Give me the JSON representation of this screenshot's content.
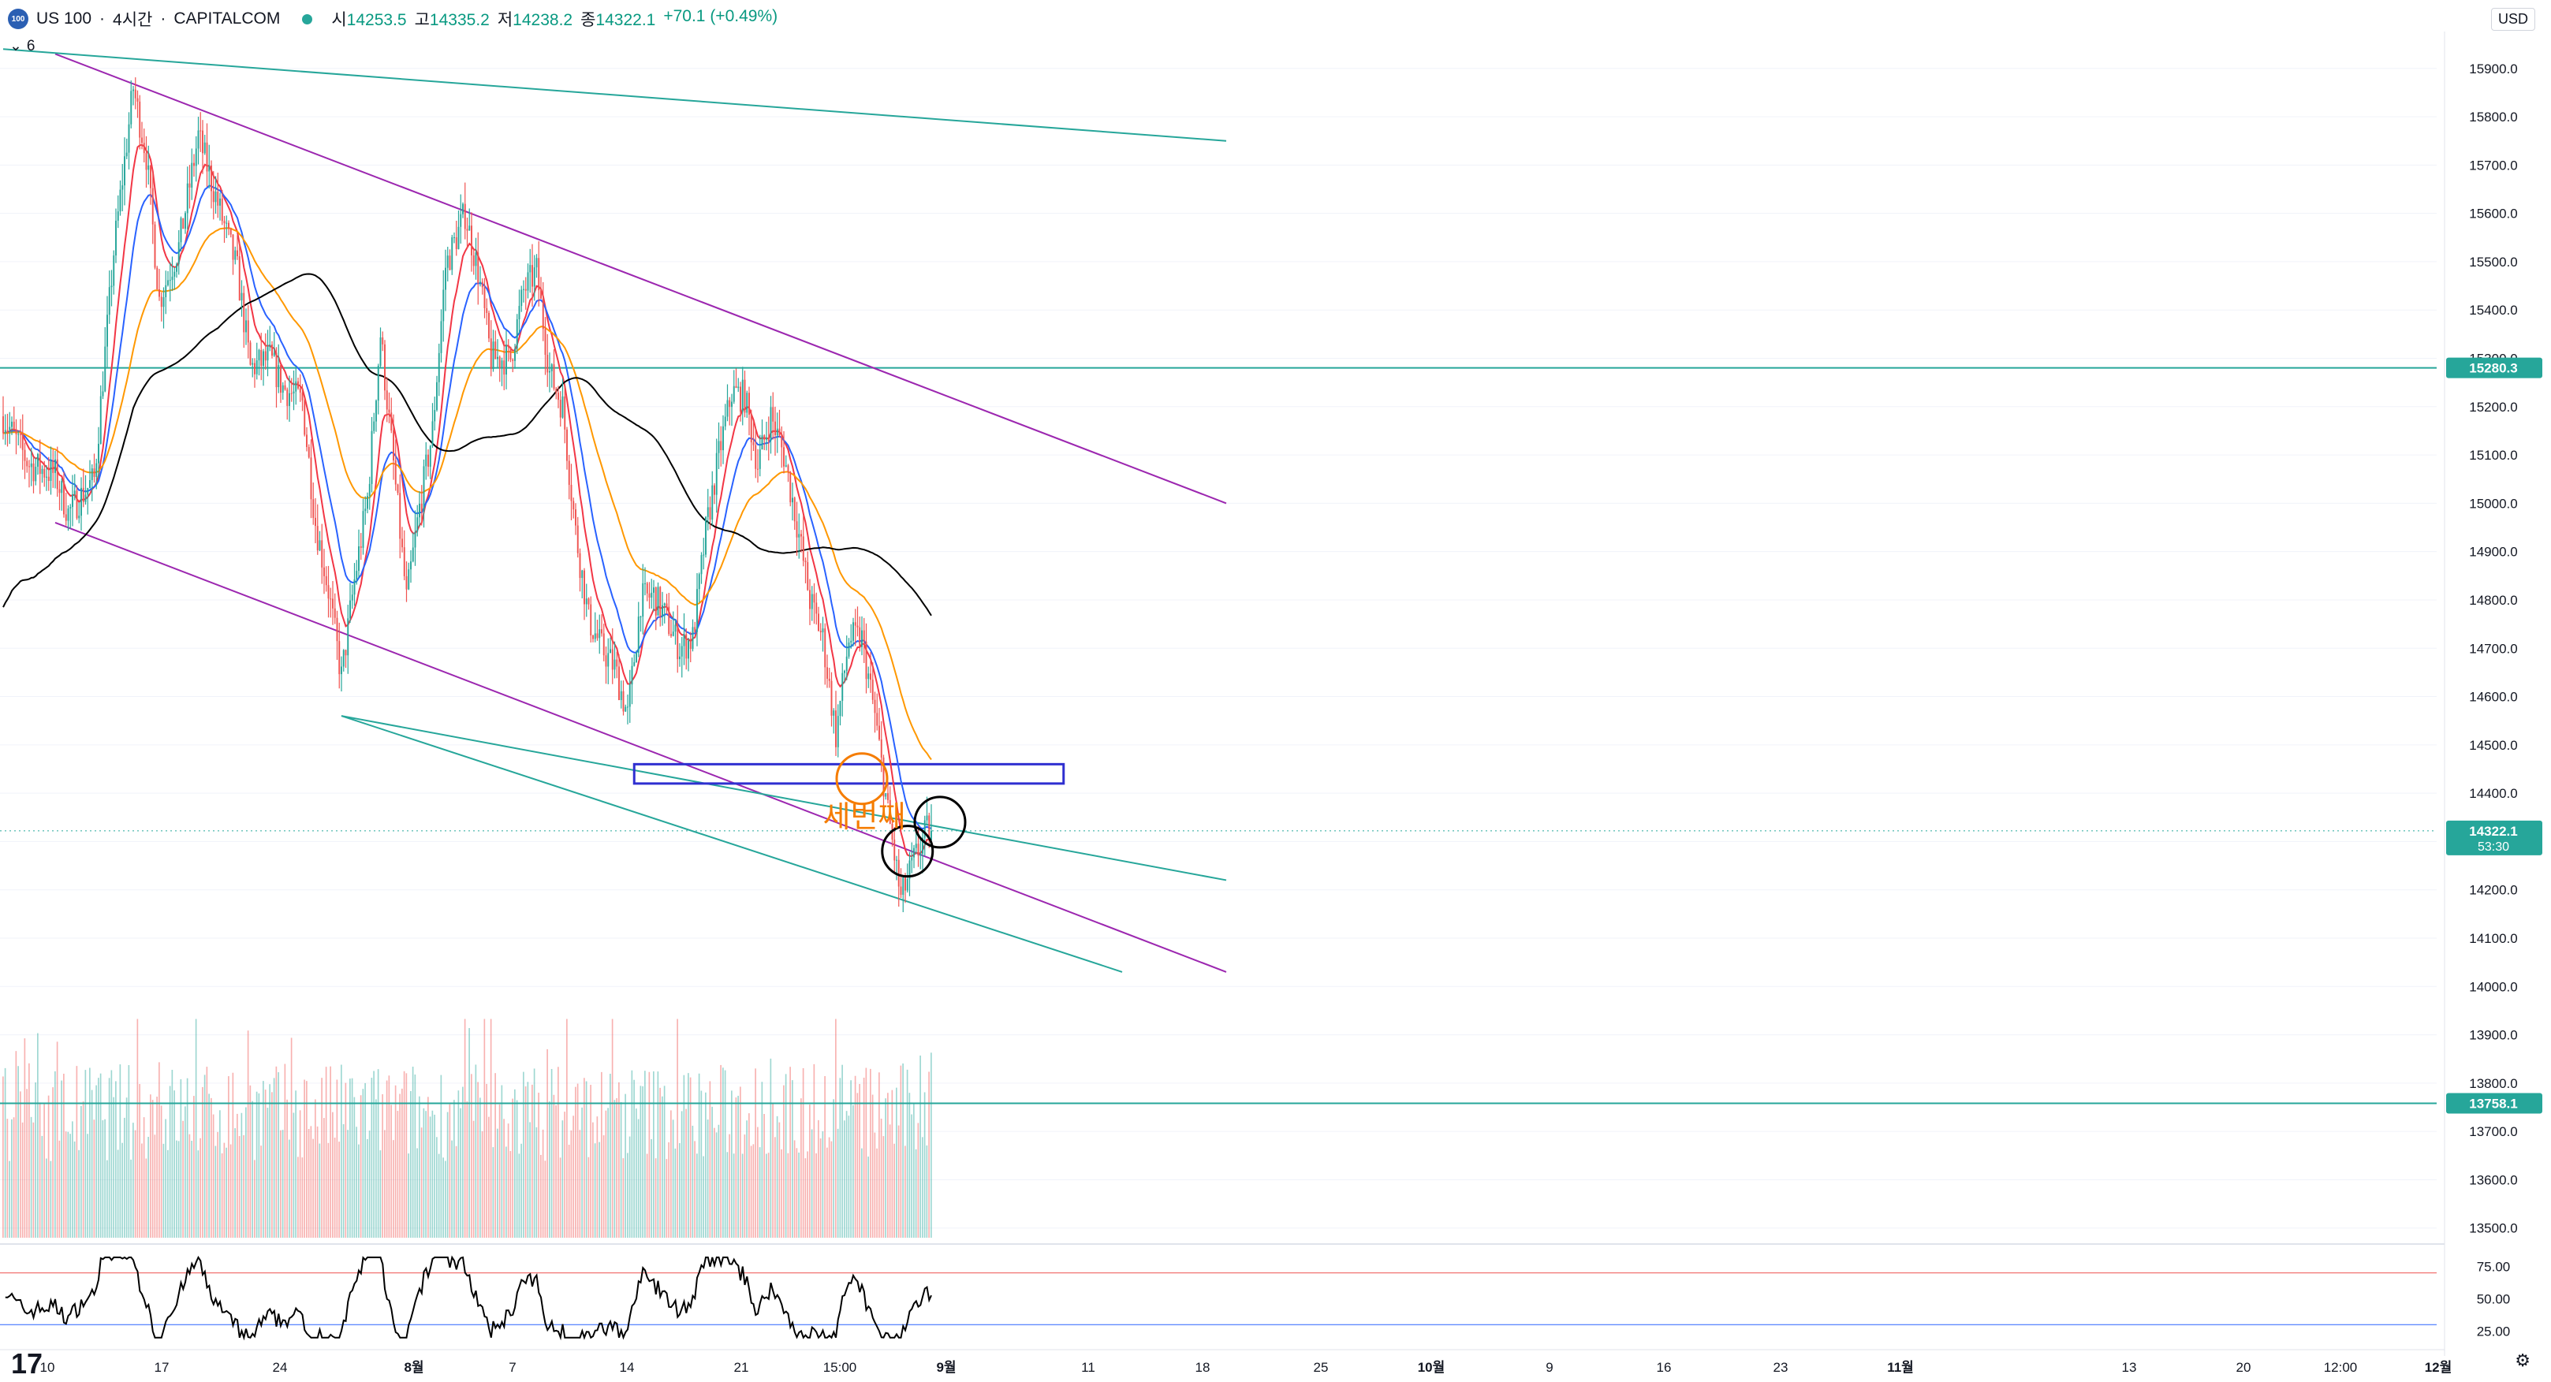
{
  "header": {
    "logo_text": "100",
    "symbol": "US 100",
    "separator1": "·",
    "interval": "4시간",
    "separator2": "·",
    "exchange": "CAPITALCOM",
    "open_label": "시",
    "open_value": "14253.5",
    "high_label": "고",
    "high_value": "14335.2",
    "low_label": "저",
    "low_value": "14238.2",
    "close_label": "종",
    "close_value": "14322.1",
    "change": "+70.1 (+0.49%)"
  },
  "indicator_tag": {
    "count": "6"
  },
  "currency_button": "USD",
  "colors": {
    "up": "#26a69a",
    "down": "#ef5350",
    "ema_fast": "#f23645",
    "ema_mid": "#2962ff",
    "ema_slow": "#ff9800",
    "ma_long": "#000000",
    "channel": "#9c27b0",
    "trendline": "#26a69a",
    "box": "#2f2fd0",
    "annotation": "#f57c00",
    "rsi": "#000000"
  },
  "annotation_text": "세번째",
  "chart_data": {
    "type": "candlestick",
    "instrument": "US 100",
    "timeframe": "4시간",
    "x_labels": [
      "10",
      "17",
      "24",
      "8월",
      "7",
      "14",
      "21",
      "15:00",
      "9월",
      "11",
      "18",
      "25",
      "10월",
      "9",
      "16",
      "23",
      "11월",
      "13",
      "20",
      "12:00",
      "12월"
    ],
    "y_ticks": [
      "15900.0",
      "15800.0",
      "15700.0",
      "15600.0",
      "15500.0",
      "15400.0",
      "15300.0",
      "15200.0",
      "15100.0",
      "15000.0",
      "14900.0",
      "14800.0",
      "14700.0",
      "14600.0",
      "14500.0",
      "14400.0",
      "14300.0",
      "14200.0",
      "14100.0",
      "14000.0",
      "13900.0",
      "13800.0",
      "13700.0",
      "13600.0",
      "13500.0"
    ],
    "ylim": [
      13480,
      15960
    ],
    "price_badges": [
      {
        "value": "15280.3",
        "kind": "horizontal_line"
      },
      {
        "value": "14322.1",
        "countdown": "53:30",
        "kind": "last_price"
      },
      {
        "value": "13758.1",
        "kind": "horizontal_line"
      }
    ],
    "close_path": [
      [
        0,
        15180
      ],
      [
        4,
        15080
      ],
      [
        8,
        15060
      ],
      [
        10,
        14980
      ],
      [
        14,
        15050
      ],
      [
        17,
        15520
      ],
      [
        20,
        15860
      ],
      [
        22,
        15720
      ],
      [
        24,
        15420
      ],
      [
        27,
        15530
      ],
      [
        30,
        15760
      ],
      [
        33,
        15620
      ],
      [
        36,
        15480
      ],
      [
        38,
        15280
      ],
      [
        41,
        15300
      ],
      [
        43,
        15240
      ],
      [
        46,
        15210
      ],
      [
        48,
        14960
      ],
      [
        50,
        14820
      ],
      [
        52,
        14640
      ],
      [
        54,
        14840
      ],
      [
        56,
        15010
      ],
      [
        58,
        15350
      ],
      [
        60,
        15080
      ],
      [
        62,
        14800
      ],
      [
        64,
        14990
      ],
      [
        66,
        15150
      ],
      [
        68,
        15490
      ],
      [
        71,
        15600
      ],
      [
        73,
        15480
      ],
      [
        75,
        15300
      ],
      [
        78,
        15300
      ],
      [
        80,
        15440
      ],
      [
        82,
        15480
      ],
      [
        84,
        15270
      ],
      [
        86,
        15200
      ],
      [
        88,
        14940
      ],
      [
        90,
        14760
      ],
      [
        92,
        14700
      ],
      [
        94,
        14660
      ],
      [
        96,
        14560
      ],
      [
        98,
        14800
      ],
      [
        100,
        14810
      ],
      [
        102,
        14760
      ],
      [
        104,
        14700
      ],
      [
        106,
        14720
      ],
      [
        108,
        14940
      ],
      [
        110,
        15100
      ],
      [
        112,
        15230
      ],
      [
        114,
        15220
      ],
      [
        116,
        15080
      ],
      [
        118,
        15180
      ],
      [
        120,
        15100
      ],
      [
        122,
        14960
      ],
      [
        124,
        14800
      ],
      [
        126,
        14720
      ],
      [
        128,
        14520
      ],
      [
        130,
        14720
      ],
      [
        132,
        14720
      ],
      [
        134,
        14560
      ],
      [
        136,
        14360
      ],
      [
        138,
        14180
      ],
      [
        140,
        14260
      ],
      [
        142,
        14322.1
      ]
    ],
    "indicators": [
      {
        "name": "EMA fast",
        "color": "#f23645"
      },
      {
        "name": "EMA mid",
        "color": "#2962ff"
      },
      {
        "name": "EMA slow",
        "color": "#ff9800"
      },
      {
        "name": "MA long",
        "color": "#000000"
      }
    ],
    "drawings": [
      {
        "type": "channel_upper",
        "from": [
          8,
          15930
        ],
        "to": [
          188,
          15000
        ]
      },
      {
        "type": "channel_lower",
        "from": [
          8,
          14960
        ],
        "to": [
          188,
          14030
        ]
      },
      {
        "type": "trendline",
        "from": [
          0,
          15940
        ],
        "to": [
          188,
          15750
        ]
      },
      {
        "type": "trendline",
        "from": [
          52,
          14560
        ],
        "to": [
          188,
          14220
        ]
      },
      {
        "type": "trendline",
        "from": [
          52,
          14560
        ],
        "to": [
          172,
          14030
        ]
      },
      {
        "type": "rectangle",
        "y_range": [
          14420,
          14460
        ],
        "x_range": [
          97,
          163
        ]
      },
      {
        "type": "ellipse",
        "at": [
          132,
          14430
        ],
        "color": "#f57c00"
      },
      {
        "type": "ellipse",
        "at": [
          139,
          14280
        ],
        "color": "#000000"
      },
      {
        "type": "ellipse",
        "at": [
          144,
          14340
        ],
        "color": "#000000"
      }
    ],
    "rsi": {
      "y_ticks": [
        "75.00",
        "50.00",
        "25.00"
      ],
      "levels": [
        70,
        30
      ],
      "ylim": [
        18,
        85
      ]
    }
  }
}
